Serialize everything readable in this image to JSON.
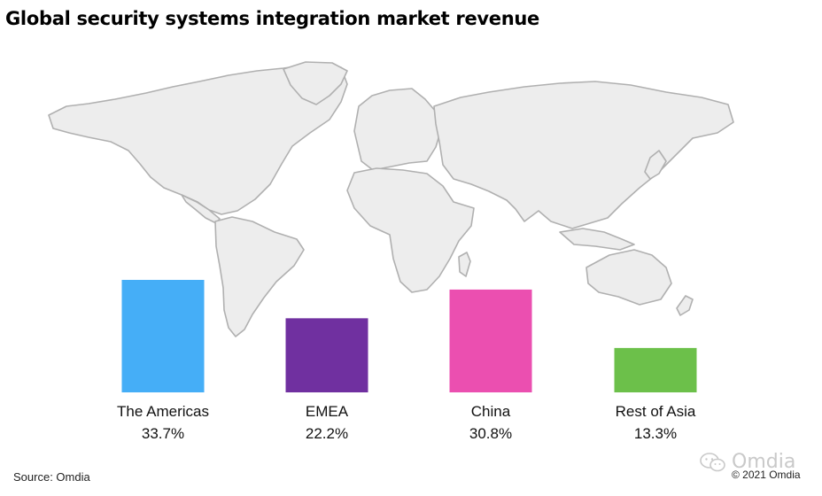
{
  "title": "Global security systems integration market revenue",
  "source": "Source: Omdia",
  "copyright": "© 2021 Omdia",
  "watermark": "Omdia",
  "chart_data": {
    "type": "bar",
    "title": "Global security systems integration market revenue",
    "categories": [
      "The Americas",
      "EMEA",
      "China",
      "Rest of Asia"
    ],
    "values": [
      33.7,
      22.2,
      30.8,
      13.3
    ],
    "value_labels": [
      "33.7%",
      "22.2%",
      "30.8%",
      "13.3%"
    ],
    "colors": [
      "#45AEF7",
      "#7030A0",
      "#EB4FB0",
      "#6CC04A"
    ],
    "unit": "%",
    "xlabel": "",
    "ylabel": "",
    "ylim": [
      0,
      33.7
    ],
    "grid": false,
    "background": "world-map",
    "map_fill": "#EDEDED",
    "map_stroke": "#B0B0B0"
  }
}
